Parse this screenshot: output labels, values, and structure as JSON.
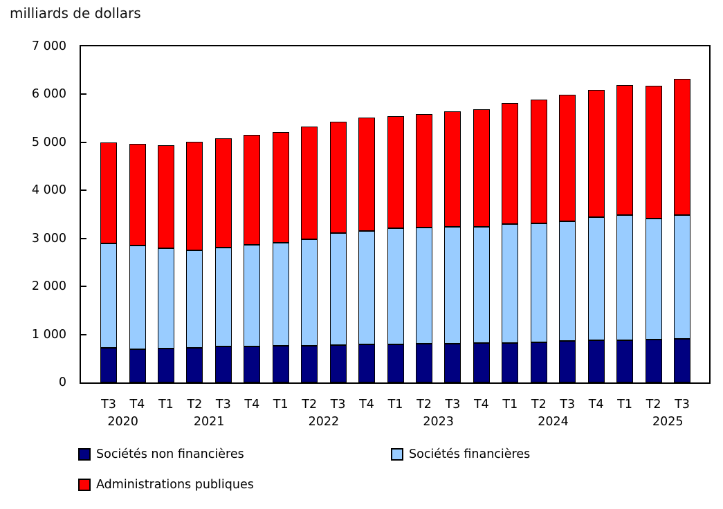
{
  "title": "milliards de dollars",
  "chart_data": {
    "type": "bar",
    "stacked": true,
    "title": "milliards de dollars",
    "ylabel": "milliards de dollars",
    "xlabel": "",
    "ylim": [
      0,
      7000
    ],
    "ytick_interval": 1000,
    "ytick_labels": [
      "0",
      "1 000",
      "2 000",
      "3 000",
      "4 000",
      "5 000",
      "6 000",
      "7 000"
    ],
    "grid": false,
    "legend_position": "bottom",
    "categories": [
      "T3",
      "T4",
      "T1",
      "T2",
      "T3",
      "T4",
      "T1",
      "T2",
      "T3",
      "T4",
      "T1",
      "T2",
      "T3",
      "T4",
      "T1",
      "T2",
      "T3",
      "T4",
      "T1",
      "T2",
      "T3"
    ],
    "year_groups": [
      {
        "label": "2020",
        "start_index": 0,
        "end_index": 1,
        "center_index": 0.5
      },
      {
        "label": "2021",
        "start_index": 2,
        "end_index": 5,
        "center_index": 3.5
      },
      {
        "label": "2022",
        "start_index": 6,
        "end_index": 9,
        "center_index": 7.5
      },
      {
        "label": "2023",
        "start_index": 10,
        "end_index": 13,
        "center_index": 11.5
      },
      {
        "label": "2024",
        "start_index": 14,
        "end_index": 17,
        "center_index": 15.5
      },
      {
        "label": "2025",
        "start_index": 18,
        "end_index": 20,
        "center_index": 19.5
      }
    ],
    "series": [
      {
        "name": "Sociétés non financières",
        "color": "#000080",
        "values": [
          720,
          695,
          710,
          725,
          745,
          755,
          760,
          770,
          780,
          790,
          800,
          805,
          810,
          815,
          825,
          840,
          860,
          880,
          885,
          890,
          905
        ]
      },
      {
        "name": "Sociétés financières",
        "color": "#99CCFF",
        "values": [
          2170,
          2160,
          2080,
          2030,
          2065,
          2110,
          2150,
          2215,
          2325,
          2360,
          2410,
          2415,
          2435,
          2425,
          2470,
          2475,
          2495,
          2560,
          2600,
          2520,
          2580
        ]
      },
      {
        "name": "Administrations publiques",
        "color": "#FF0000",
        "values": [
          2110,
          2115,
          2155,
          2255,
          2275,
          2290,
          2300,
          2350,
          2330,
          2360,
          2330,
          2370,
          2405,
          2455,
          2525,
          2580,
          2635,
          2660,
          2715,
          2775,
          2845
        ]
      }
    ],
    "totals": [
      5000,
      4970,
      4945,
      5010,
      5085,
      5155,
      5210,
      5335,
      5435,
      5510,
      5540,
      5590,
      5650,
      5695,
      5820,
      5895,
      5990,
      6100,
      6200,
      6185,
      6330
    ]
  },
  "legend": {
    "items": [
      {
        "label": "Sociétés non financières",
        "color": "#000080"
      },
      {
        "label": "Sociétés financières",
        "color": "#99CCFF"
      },
      {
        "label": "Administrations publiques",
        "color": "#FF0000"
      }
    ]
  }
}
